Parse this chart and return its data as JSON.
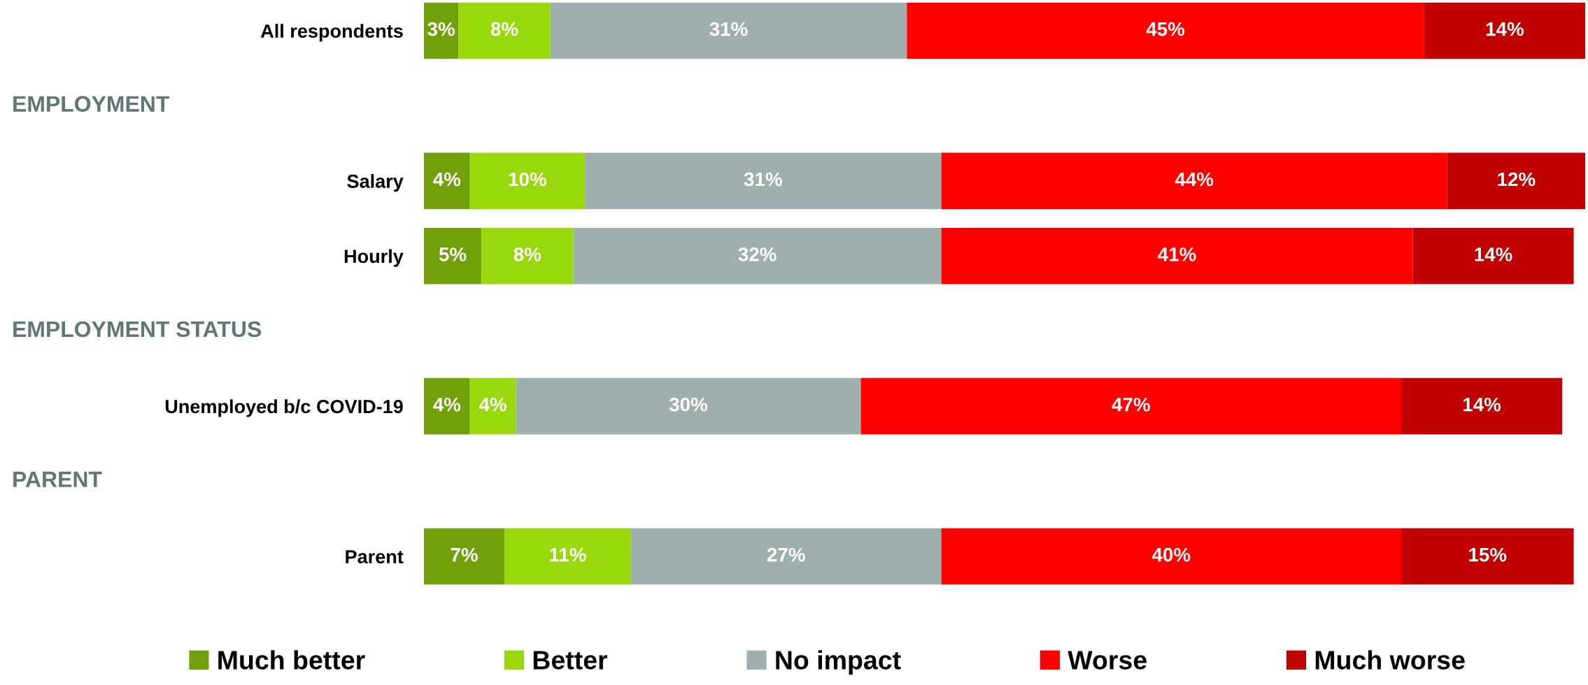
{
  "chart_data": {
    "type": "bar",
    "orientation": "horizontal",
    "stacked": true,
    "categories": [
      "All respondents",
      null,
      "Salary",
      "Hourly",
      null,
      "Unemployed b/c COVID-19",
      null,
      "Parent"
    ],
    "series": [
      {
        "name": "Much better",
        "color": "#71a00a",
        "values": [
          3,
          null,
          4,
          5,
          null,
          4,
          null,
          7
        ],
        "value_labels": [
          "3%",
          null,
          "4%",
          "5%",
          null,
          "4%",
          null,
          "7%"
        ]
      },
      {
        "name": "Better",
        "color": "#99d80c",
        "values": [
          8,
          null,
          10,
          8,
          null,
          4,
          null,
          11
        ],
        "value_labels": [
          "8%",
          null,
          "10%",
          "8%",
          null,
          "4%",
          null,
          "11%"
        ]
      },
      {
        "name": "No impact",
        "color": "#9eafae",
        "values": [
          31,
          null,
          31,
          32,
          null,
          30,
          null,
          27
        ],
        "value_labels": [
          "31%",
          null,
          "31%",
          "32%",
          null,
          "30%",
          null,
          "27%"
        ]
      },
      {
        "name": "Worse",
        "color": "#ff0000",
        "values": [
          45,
          null,
          44,
          41,
          null,
          47,
          null,
          40
        ],
        "value_labels": [
          "45%",
          null,
          "44%",
          "41%",
          null,
          "47%",
          null,
          "40%"
        ]
      },
      {
        "name": "Much worse",
        "color": "#c00000",
        "values": [
          14,
          null,
          12,
          14,
          null,
          14,
          null,
          15
        ],
        "value_labels": [
          "14%",
          null,
          "12%",
          "14%",
          null,
          "14%",
          null,
          "15%"
        ]
      }
    ],
    "annotations": [
      "EMPLOYMENT",
      "EMPLOYMENT STATUS",
      "PARENT"
    ],
    "xlim": [
      0,
      101
    ],
    "tick_labels": "y",
    "legend": "bottom"
  }
}
